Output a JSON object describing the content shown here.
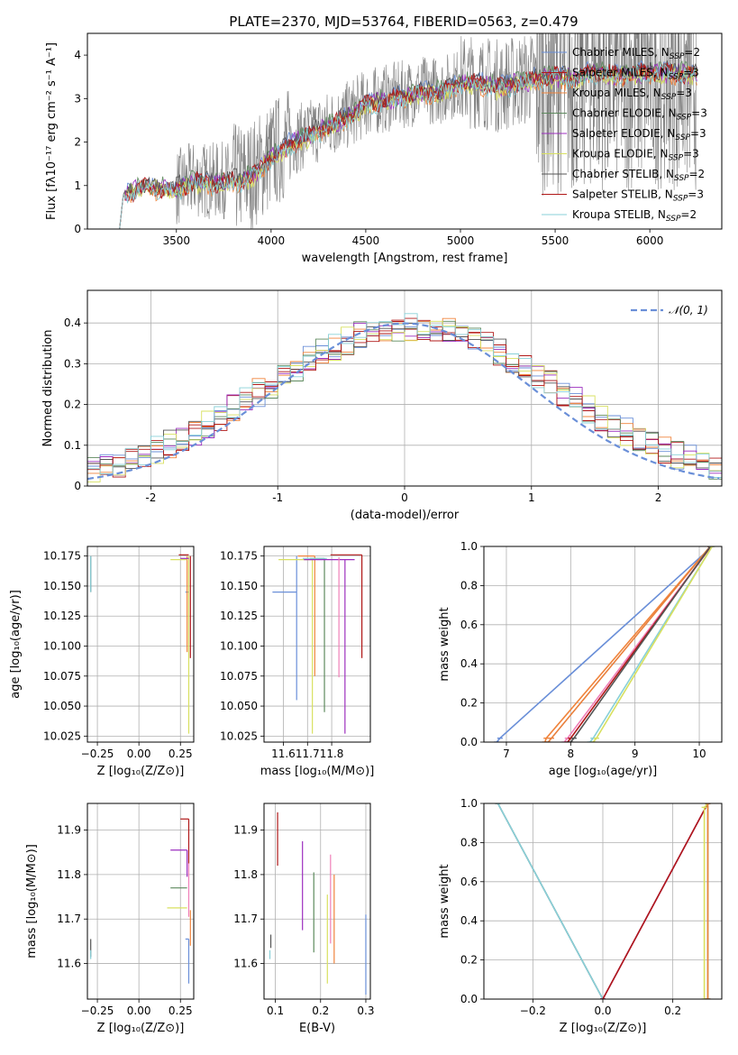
{
  "title": "PLATE=2370, MJD=53764, FIBERID=0563, z=0.479",
  "colors": {
    "data": "#808080",
    "models": [
      "#6a8fd8",
      "#e9803c",
      "#f0843c",
      "#5e8a5e",
      "#9c2fbf",
      "#d8e060",
      "#555555",
      "#b01818",
      "#88d0d8"
    ],
    "normal": "#6a8fd8"
  },
  "legend_models": [
    {
      "label": "Chabrier MILES, N",
      "sub": "SSP",
      "suffix": "=2",
      "color": "#6a8fd8"
    },
    {
      "label": "Salpeter MILES, N",
      "sub": "SSP",
      "suffix": "=3",
      "color": "#b01818"
    },
    {
      "label": "Kroupa MILES, N",
      "sub": "SSP",
      "suffix": "=3",
      "color": "#f0843c"
    },
    {
      "label": "Chabrier ELODIE, N",
      "sub": "SSP",
      "suffix": "=3",
      "color": "#5e8a5e"
    },
    {
      "label": "Salpeter ELODIE, N",
      "sub": "SSP",
      "suffix": "=3",
      "color": "#9c2fbf"
    },
    {
      "label": "Kroupa ELODIE, N",
      "sub": "SSP",
      "suffix": "=3",
      "color": "#d8e060"
    },
    {
      "label": "Chabrier STELIB, N",
      "sub": "SSP",
      "suffix": "=2",
      "color": "#555555"
    },
    {
      "label": "Salpeter STELIB, N",
      "sub": "SSP",
      "suffix": "=3",
      "color": "#b01818"
    },
    {
      "label": "Kroupa STELIB, N",
      "sub": "SSP",
      "suffix": "=2",
      "color": "#88d0d8"
    }
  ],
  "chart_data": [
    {
      "id": "spectrum",
      "type": "line",
      "xlabel": "wavelength [Angstrom, rest frame]",
      "ylabel": "Flux [fλ10⁻¹⁷ erg cm⁻² s⁻¹ A⁻¹]",
      "xlim": [
        3030,
        6380
      ],
      "ylim": [
        0,
        4.5
      ],
      "xticks": [
        3500,
        4000,
        4500,
        5000,
        5500,
        6000
      ],
      "yticks": [
        0,
        1,
        2,
        3,
        4
      ],
      "model_points": [
        [
          3200,
          0
        ],
        [
          3220,
          0.8
        ],
        [
          3300,
          1.0
        ],
        [
          3400,
          1.0
        ],
        [
          3500,
          0.95
        ],
        [
          3600,
          1.15
        ],
        [
          3700,
          1.1
        ],
        [
          3800,
          1.15
        ],
        [
          3900,
          1.25
        ],
        [
          4000,
          1.7
        ],
        [
          4100,
          2.0
        ],
        [
          4200,
          2.2
        ],
        [
          4300,
          2.4
        ],
        [
          4400,
          2.6
        ],
        [
          4500,
          2.9
        ],
        [
          4600,
          3.0
        ],
        [
          4700,
          3.1
        ],
        [
          4800,
          3.2
        ],
        [
          4900,
          3.2
        ],
        [
          5000,
          3.4
        ],
        [
          5100,
          3.4
        ],
        [
          5200,
          3.3
        ],
        [
          5300,
          3.4
        ],
        [
          5400,
          3.5
        ],
        [
          5500,
          3.55
        ],
        [
          5600,
          3.5
        ],
        [
          5700,
          3.65
        ],
        [
          5800,
          3.6
        ],
        [
          5900,
          3.6
        ],
        [
          6000,
          3.65
        ],
        [
          6100,
          3.65
        ],
        [
          6200,
          3.6
        ],
        [
          6250,
          3.6
        ]
      ],
      "grid": false,
      "legend_position": "upper-right"
    },
    {
      "id": "residuals",
      "type": "histogram",
      "xlabel": "(data-model)/error",
      "ylabel": "Normed distribution",
      "xlim": [
        -2.5,
        2.5
      ],
      "ylim": [
        0,
        0.48
      ],
      "xticks": [
        -2,
        -1,
        0,
        1,
        2
      ],
      "yticks": [
        0.0,
        0.1,
        0.2,
        0.3,
        0.4
      ],
      "bin_width": 0.1,
      "reference": {
        "label": "𝒩(0, 1)",
        "mean": 0,
        "sigma": 1
      },
      "grid": true,
      "legend_position": "upper-right"
    },
    {
      "id": "age-vs-Z",
      "type": "errorbar",
      "xlabel": "Z [log₁₀(Z/Z⊙)]",
      "ylabel": "age  [log₁₀(age/yr)]",
      "xlim": [
        -0.31,
        0.33
      ],
      "ylim": [
        10.02,
        10.183
      ],
      "xticks": [
        -0.25,
        0.0,
        0.25
      ],
      "xtick_labels": [
        "−0.25",
        "0.00",
        "0.25"
      ],
      "yticks": [
        10.025,
        10.05,
        10.075,
        10.1,
        10.125,
        10.15,
        10.175
      ],
      "ytick_labels": [
        "10.025",
        "10.050",
        "10.075",
        "10.100",
        "10.125",
        "10.150",
        "10.175"
      ],
      "points": [
        {
          "x": -0.29,
          "y": 10.175,
          "yerr": [
            0.03,
            0
          ],
          "color": "#555555"
        },
        {
          "x": -0.29,
          "y": 10.175,
          "yerr": [
            0.03,
            0
          ],
          "color": "#88d0d8"
        },
        {
          "x": 0.3,
          "y": 10.145,
          "yerr": [
            0,
            0
          ],
          "xerr": [
            0.02,
            0
          ],
          "color": "#6a8fd8"
        },
        {
          "x": 0.29,
          "y": 10.175,
          "yerr": [
            0.08,
            0
          ],
          "color": "#f0843c"
        },
        {
          "x": 0.3,
          "y": 10.175,
          "yerr": [
            0.148,
            0
          ],
          "color": "#d8e060"
        },
        {
          "x": 0.29,
          "y": 10.172,
          "xerr": [
            0.1,
            0
          ],
          "color": "#d8e060"
        },
        {
          "x": 0.3,
          "y": 10.176,
          "xerr": [
            0.06,
            0
          ],
          "color": "#b01818"
        },
        {
          "x": 0.31,
          "y": 10.175,
          "yerr": [
            0.085,
            0
          ],
          "color": "#b01818"
        },
        {
          "x": 0.3,
          "y": 10.173,
          "xerr": [
            0.05,
            0
          ],
          "color": "#9c2fbf"
        }
      ],
      "grid": true
    },
    {
      "id": "age-vs-mass",
      "type": "errorbar",
      "xlabel": "mass [log₁₀(M/M⊙)]",
      "ylabel": "",
      "xlim": [
        11.52,
        11.96
      ],
      "ylim": [
        10.02,
        10.183
      ],
      "xticks": [
        11.6,
        11.7,
        11.8
      ],
      "yticks": [
        10.025,
        10.05,
        10.075,
        10.1,
        10.125,
        10.15,
        10.175
      ],
      "ytick_labels": [
        "10.025",
        "10.050",
        "10.075",
        "10.100",
        "10.125",
        "10.150",
        "10.175"
      ],
      "points": [
        {
          "x": 11.655,
          "y": 10.145,
          "xerr": [
            0.1,
            0
          ],
          "yerr": [
            0,
            0.03
          ],
          "color": "#6a8fd8"
        },
        {
          "x": 11.655,
          "y": 10.145,
          "yerr": [
            0.09,
            0
          ],
          "color": "#6a8fd8"
        },
        {
          "x": 11.73,
          "y": 10.175,
          "yerr": [
            0.1,
            0
          ],
          "xerr": [
            0.07,
            0
          ],
          "color": "#f0843c"
        },
        {
          "x": 11.72,
          "y": 10.172,
          "yerr": [
            0.145,
            0
          ],
          "xerr": [
            0.14,
            0
          ],
          "color": "#d8e060"
        },
        {
          "x": 11.77,
          "y": 10.173,
          "yerr": [
            0.128,
            0
          ],
          "xerr": [
            0.06,
            0
          ],
          "color": "#5e8a5e"
        },
        {
          "x": 11.855,
          "y": 10.172,
          "yerr": [
            0.145,
            0
          ],
          "xerr": [
            0.17,
            0.04
          ],
          "color": "#9c2fbf"
        },
        {
          "x": 11.83,
          "y": 10.174,
          "yerr": [
            0.1,
            0
          ],
          "color": "#f080b8"
        },
        {
          "x": 11.925,
          "y": 10.176,
          "yerr": [
            0.086,
            0
          ],
          "xerr": [
            0.13,
            0
          ],
          "color": "#b01818"
        },
        {
          "x": 11.78,
          "y": 10.173,
          "xerr": [
            0.1,
            0
          ],
          "color": "#88d0d8"
        }
      ],
      "grid": true
    },
    {
      "id": "mass-weight-vs-age",
      "type": "line",
      "xlabel": "age  [log₁₀(age/yr)]",
      "ylabel": "mass weight",
      "xlim": [
        6.65,
        10.35
      ],
      "ylim": [
        0,
        1
      ],
      "xticks": [
        7,
        8,
        9,
        10
      ],
      "yticks": [
        0.0,
        0.2,
        0.4,
        0.6,
        0.8,
        1.0
      ],
      "ytick_labels": [
        "0.0",
        "0.2",
        "0.4",
        "0.6",
        "0.8",
        "1.0"
      ],
      "series": [
        {
          "x": [
            6.85,
            6.9,
            10.2
          ],
          "y": [
            0,
            0.02,
            1.0
          ],
          "color": "#6a8fd8"
        },
        {
          "x": [
            7.6,
            7.62,
            10.17
          ],
          "y": [
            0,
            0.02,
            1.0
          ],
          "color": "#f0843c"
        },
        {
          "x": [
            7.65,
            7.7,
            10.17
          ],
          "y": [
            0,
            0.02,
            1.0
          ],
          "color": "#e9803c"
        },
        {
          "x": [
            7.9,
            7.95,
            10.18
          ],
          "y": [
            0,
            0.02,
            1.0
          ],
          "color": "#f080b8"
        },
        {
          "x": [
            7.95,
            8.0,
            10.18
          ],
          "y": [
            0,
            0.02,
            1.0
          ],
          "color": "#b01818"
        },
        {
          "x": [
            8.0,
            8.05,
            10.17
          ],
          "y": [
            0,
            0.02,
            1.0
          ],
          "color": "#555555"
        },
        {
          "x": [
            8.3,
            8.35,
            10.2
          ],
          "y": [
            0,
            0.02,
            1.0
          ],
          "color": "#88d0d8"
        },
        {
          "x": [
            8.35,
            8.4,
            10.2
          ],
          "y": [
            0,
            0.02,
            1.0
          ],
          "color": "#d8e060"
        }
      ],
      "grid": true
    },
    {
      "id": "mass-vs-Z",
      "type": "errorbar",
      "xlabel": "Z [log₁₀(Z/Z⊙)]",
      "ylabel": "mass [log₁₀(M/M⊙)]",
      "xlim": [
        -0.31,
        0.33
      ],
      "ylim": [
        11.52,
        11.96
      ],
      "xticks": [
        -0.25,
        0.0,
        0.25
      ],
      "xtick_labels": [
        "−0.25",
        "0.00",
        "0.25"
      ],
      "yticks": [
        11.6,
        11.7,
        11.8,
        11.9
      ],
      "points": [
        {
          "x": -0.29,
          "y": 11.655,
          "yerr": [
            0.04,
            0
          ],
          "color": "#555555"
        },
        {
          "x": -0.29,
          "y": 11.63,
          "yerr": [
            0.02,
            0
          ],
          "color": "#88d0d8"
        },
        {
          "x": 0.3,
          "y": 11.925,
          "xerr": [
            0.05,
            0
          ],
          "yerr": [
            0.1,
            0
          ],
          "color": "#b01818"
        },
        {
          "x": 0.29,
          "y": 11.855,
          "xerr": [
            0.1,
            0
          ],
          "yerr": [
            0.06,
            0
          ],
          "color": "#9c2fbf"
        },
        {
          "x": 0.29,
          "y": 11.77,
          "xerr": [
            0.1,
            0
          ],
          "color": "#5e8a5e"
        },
        {
          "x": 0.29,
          "y": 11.725,
          "xerr": [
            0.12,
            0
          ],
          "color": "#d8e060"
        },
        {
          "x": 0.3,
          "y": 11.825,
          "yerr": [
            0.12,
            0
          ],
          "color": "#f080b8"
        },
        {
          "x": 0.31,
          "y": 11.72,
          "yerr": [
            0.08,
            0
          ],
          "color": "#f0843c"
        },
        {
          "x": 0.3,
          "y": 11.655,
          "xerr": [
            0.02,
            0
          ],
          "yerr": [
            0.1,
            0
          ],
          "color": "#6a8fd8"
        }
      ],
      "grid": true
    },
    {
      "id": "mass-vs-EBV",
      "type": "errorbar",
      "xlabel": "E(B-V)",
      "ylabel": "",
      "xlim": [
        0.075,
        0.31
      ],
      "ylim": [
        11.52,
        11.96
      ],
      "xticks": [
        0.1,
        0.2,
        0.3
      ],
      "yticks": [
        11.6,
        11.7,
        11.8,
        11.9
      ],
      "points": [
        {
          "x": 0.09,
          "y": 11.665,
          "yerr": [
            0.03,
            0
          ],
          "color": "#555555"
        },
        {
          "x": 0.088,
          "y": 11.63,
          "yerr": [
            0.02,
            0
          ],
          "color": "#88d0d8"
        },
        {
          "x": 0.105,
          "y": 11.88,
          "yerr": [
            0.06,
            0.06
          ],
          "color": "#b01818"
        },
        {
          "x": 0.16,
          "y": 11.775,
          "yerr": [
            0.1,
            0.1
          ],
          "color": "#9c2fbf"
        },
        {
          "x": 0.185,
          "y": 11.715,
          "yerr": [
            0.09,
            0.09
          ],
          "color": "#5e8a5e"
        },
        {
          "x": 0.215,
          "y": 11.655,
          "yerr": [
            0.1,
            0.1
          ],
          "color": "#d8e060"
        },
        {
          "x": 0.222,
          "y": 11.745,
          "yerr": [
            0.1,
            0.1
          ],
          "color": "#f080b8"
        },
        {
          "x": 0.23,
          "y": 11.7,
          "yerr": [
            0.1,
            0.1
          ],
          "color": "#f0843c"
        },
        {
          "x": 0.3,
          "y": 11.62,
          "yerr": [
            0.09,
            0.09
          ],
          "color": "#6a8fd8"
        }
      ],
      "grid": true
    },
    {
      "id": "mass-weight-vs-Z",
      "type": "line",
      "xlabel": "Z [log₁₀(Z/Z⊙)]",
      "ylabel": "mass weight",
      "xlim": [
        -0.34,
        0.34
      ],
      "ylim": [
        0,
        1
      ],
      "xticks": [
        -0.2,
        0.0,
        0.2
      ],
      "xtick_labels": [
        "−0.2",
        "0.0",
        "0.2"
      ],
      "yticks": [
        0.0,
        0.2,
        0.4,
        0.6,
        0.8,
        1.0
      ],
      "ytick_labels": [
        "0.0",
        "0.2",
        "0.4",
        "0.6",
        "0.8",
        "1.0"
      ],
      "series": [
        {
          "x": [
            -0.3,
            0.0
          ],
          "y": [
            1.0,
            0.0
          ],
          "color": "#555555"
        },
        {
          "x": [
            -0.3,
            0.0
          ],
          "y": [
            1.0,
            0.0
          ],
          "color": "#88d0d8"
        },
        {
          "x": [
            0.0,
            0.3
          ],
          "y": [
            0.0,
            1.0
          ],
          "color": "#9c2fbf"
        },
        {
          "x": [
            0.0,
            0.3
          ],
          "y": [
            0.0,
            1.0
          ],
          "color": "#b01818"
        },
        {
          "x": [
            0.29,
            0.29,
            0.3
          ],
          "y": [
            0.0,
            0.98,
            1.0
          ],
          "color": "#d8e060"
        },
        {
          "x": [
            0.3,
            0.3
          ],
          "y": [
            0.0,
            1.0
          ],
          "color": "#5e8a5e"
        },
        {
          "x": [
            0.3,
            0.3
          ],
          "y": [
            0.0,
            1.0
          ],
          "color": "#f0843c"
        }
      ],
      "grid": true
    }
  ]
}
